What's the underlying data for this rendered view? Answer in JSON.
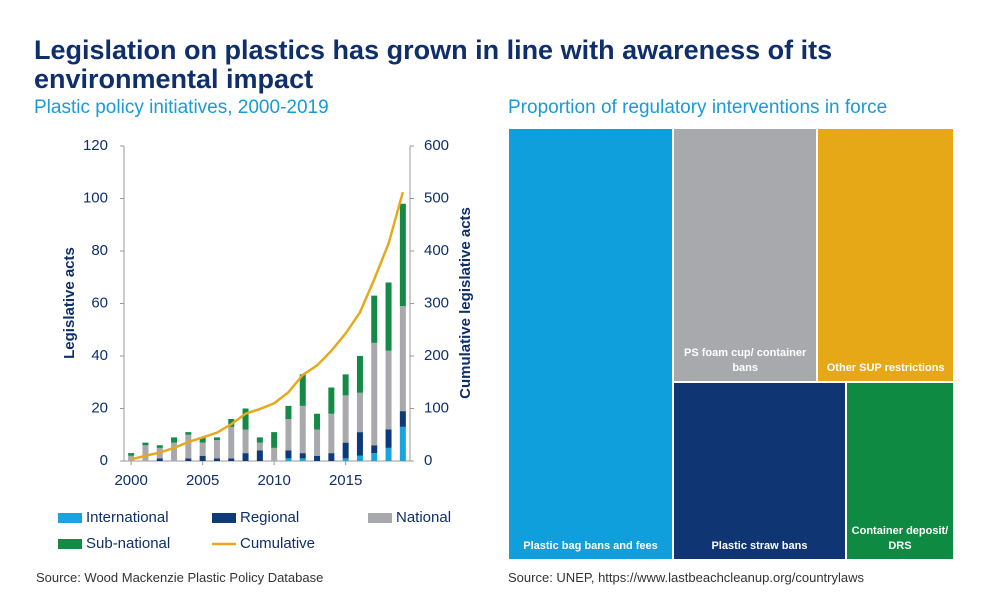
{
  "title": "Legislation on plastics has grown in line with awareness of its environmental impact",
  "chart_data": [
    {
      "type": "bar",
      "subtitle": "Plastic policy initiatives, 2000-2019",
      "y_label": "Legislative acts",
      "y2_label": "Cumulative legislative acts",
      "source": "Source: Wood Mackenzie Plastic Policy Database",
      "x": [
        2000,
        2001,
        2002,
        2003,
        2004,
        2005,
        2006,
        2007,
        2008,
        2009,
        2010,
        2011,
        2012,
        2013,
        2014,
        2015,
        2016,
        2017,
        2018,
        2019
      ],
      "xlim": [
        1999.5,
        2019.5
      ],
      "xticks": [
        2000,
        2005,
        2010,
        2015
      ],
      "ylim": [
        0,
        120
      ],
      "yticks": [
        0,
        20,
        40,
        60,
        80,
        100,
        120
      ],
      "y2lim": [
        0,
        600
      ],
      "y2ticks": [
        0,
        100,
        200,
        300,
        400,
        500,
        600
      ],
      "stacked": true,
      "series": [
        {
          "name": "International",
          "color": "#1ba3dd",
          "values": [
            0,
            0,
            0,
            0,
            0,
            0,
            0,
            0,
            0,
            0,
            0,
            1,
            1,
            0,
            0,
            1,
            2,
            3,
            5,
            13
          ]
        },
        {
          "name": "Regional",
          "color": "#0f3a7a",
          "values": [
            0,
            0,
            1,
            0,
            1,
            2,
            1,
            1,
            3,
            4,
            0,
            3,
            2,
            2,
            3,
            6,
            9,
            3,
            7,
            6
          ]
        },
        {
          "name": "National",
          "color": "#a7a9ac",
          "values": [
            2,
            6,
            4,
            7,
            9,
            5,
            7,
            12,
            9,
            3,
            5,
            12,
            18,
            10,
            15,
            18,
            15,
            39,
            30,
            40
          ]
        },
        {
          "name": "Sub-national",
          "color": "#138a46",
          "values": [
            1,
            1,
            1,
            2,
            1,
            2,
            1,
            3,
            8,
            2,
            6,
            5,
            12,
            6,
            10,
            8,
            14,
            18,
            26,
            39
          ]
        },
        {
          "name": "Cumulative",
          "color": "#e8a81c",
          "type": "line",
          "axis": "y2",
          "values": [
            3,
            10,
            16,
            25,
            36,
            45,
            54,
            70,
            90,
            99,
            110,
            131,
            164,
            182,
            210,
            243,
            283,
            346,
            414,
            512
          ]
        }
      ]
    },
    {
      "type": "treemap",
      "subtitle": "Proportion of regulatory interventions in force",
      "source": "Source: UNEP, https://www.lastbeachcleanup.org/countrylaws",
      "categories": [
        "Plastic bag bans and fees",
        "PS foam cup/ container bans",
        "Other SUP restrictions",
        "Plastic straw bans",
        "Container deposit/ DRS"
      ],
      "values": [
        37,
        19,
        18,
        16,
        10
      ],
      "colors": [
        "#0e9fdc",
        "#a7a9ac",
        "#e6a817",
        "#0f3572",
        "#0e8a43"
      ]
    }
  ]
}
